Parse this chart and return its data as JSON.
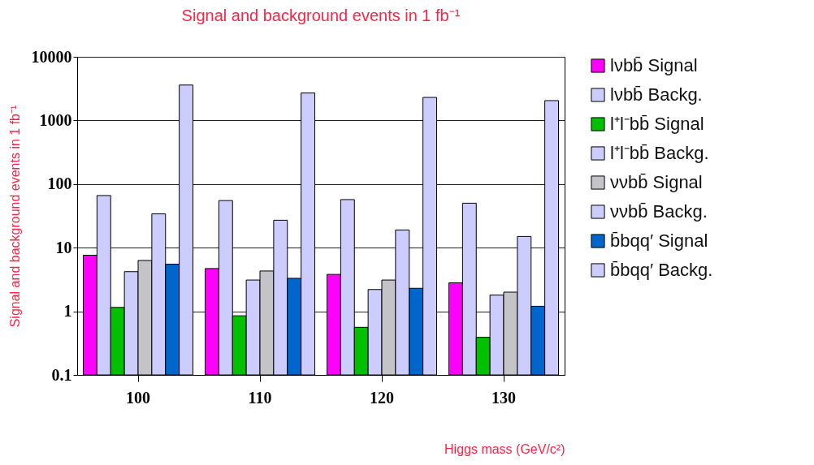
{
  "chart_data": {
    "type": "bar",
    "title": "Signal and background events in 1 fb⁻¹",
    "xlabel": "Higgs mass (GeV/c²)",
    "ylabel": "Signal and background events in 1 fb⁻¹",
    "categories": [
      "100",
      "110",
      "120",
      "130"
    ],
    "series": [
      {
        "name": "lνbb̄ Signal",
        "color": "#ff00ff",
        "values": [
          7.6,
          4.7,
          3.8,
          2.8
        ]
      },
      {
        "name": "lνbb̄ Backg.",
        "color": "#ccccff",
        "values": [
          66,
          55,
          57,
          50
        ]
      },
      {
        "name": "l⁺l⁻bb̄ Signal",
        "color": "#00c000",
        "values": [
          1.15,
          0.85,
          0.56,
          0.39
        ]
      },
      {
        "name": "l⁺l⁻bb̄ Backg.",
        "color": "#ccccff",
        "values": [
          4.2,
          3.1,
          2.2,
          1.8
        ]
      },
      {
        "name": "ννbb̄ Signal",
        "color": "#c4c4c8",
        "values": [
          6.3,
          4.3,
          3.1,
          2.0
        ]
      },
      {
        "name": "ννbb̄ Backg.",
        "color": "#ccccff",
        "values": [
          34,
          27,
          19,
          15
        ]
      },
      {
        "name": "b̄bqq′ Signal",
        "color": "#0066cc",
        "values": [
          5.5,
          3.3,
          2.3,
          1.2
        ]
      },
      {
        "name": "b̄bqq′ Backg.",
        "color": "#ccccff",
        "values": [
          3600,
          2700,
          2300,
          2050
        ]
      }
    ],
    "log": true,
    "ylim": [
      0.1,
      10000
    ],
    "yticks": [
      0.1,
      1,
      10,
      100,
      1000,
      10000
    ],
    "grid": "y",
    "legend": "right"
  }
}
